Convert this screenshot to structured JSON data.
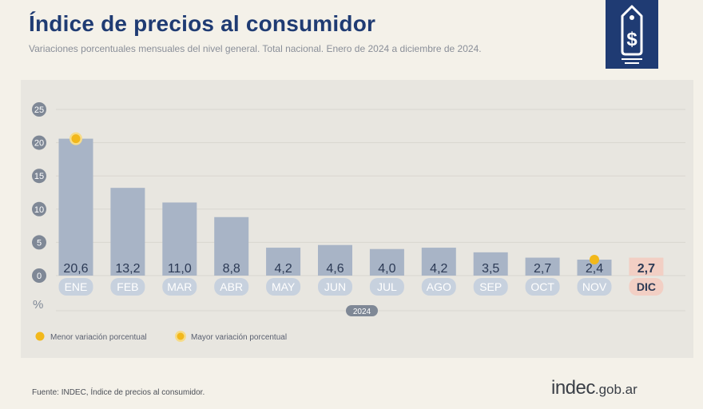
{
  "header": {
    "title": "Índice de precios al consumidor",
    "subtitle": "Variaciones porcentuales mensuales del nivel general. Total nacional. Enero de 2024 a diciembre de 2024.",
    "badge_icon": "price-tag-dollar-icon"
  },
  "footer": {
    "source": "Fuente: INDEC, Índice de precios al consumidor.",
    "logo_main": "indec",
    "logo_suffix": ".gob.ar"
  },
  "colors": {
    "bar": "#a8b4c6",
    "bar_highlight": "#f2cfc4",
    "label_pill": "#c7d1de",
    "label_pill_highlight": "#f2cfc4",
    "marker": "#f2b81b",
    "title": "#1f3b73",
    "tick_circle": "#7f8896"
  },
  "chart_data": {
    "type": "bar",
    "categories": [
      "ENE",
      "FEB",
      "MAR",
      "ABR",
      "MAY",
      "JUN",
      "JUL",
      "AGO",
      "SEP",
      "OCT",
      "NOV",
      "DIC"
    ],
    "values": [
      20.6,
      13.2,
      11.0,
      8.8,
      4.2,
      4.6,
      4.0,
      4.2,
      3.5,
      2.7,
      2.4,
      2.7
    ],
    "value_labels": [
      "20,6",
      "13,2",
      "11,0",
      "8,8",
      "4,2",
      "4,6",
      "4,0",
      "4,2",
      "3,5",
      "2,7",
      "2,4",
      "2,7"
    ],
    "highlight_category": "DIC",
    "ylim": [
      0,
      25
    ],
    "yticks": [
      0,
      5,
      10,
      15,
      20,
      25
    ],
    "ylabel": "%",
    "year_label": "2024",
    "markers": [
      {
        "category": "NOV",
        "type": "min"
      },
      {
        "category": "ENE",
        "type": "max"
      }
    ],
    "legend": [
      {
        "label": "Menor variación porcentual",
        "type": "min"
      },
      {
        "label": "Mayor variación porcentual",
        "type": "max"
      }
    ],
    "grid": true
  }
}
